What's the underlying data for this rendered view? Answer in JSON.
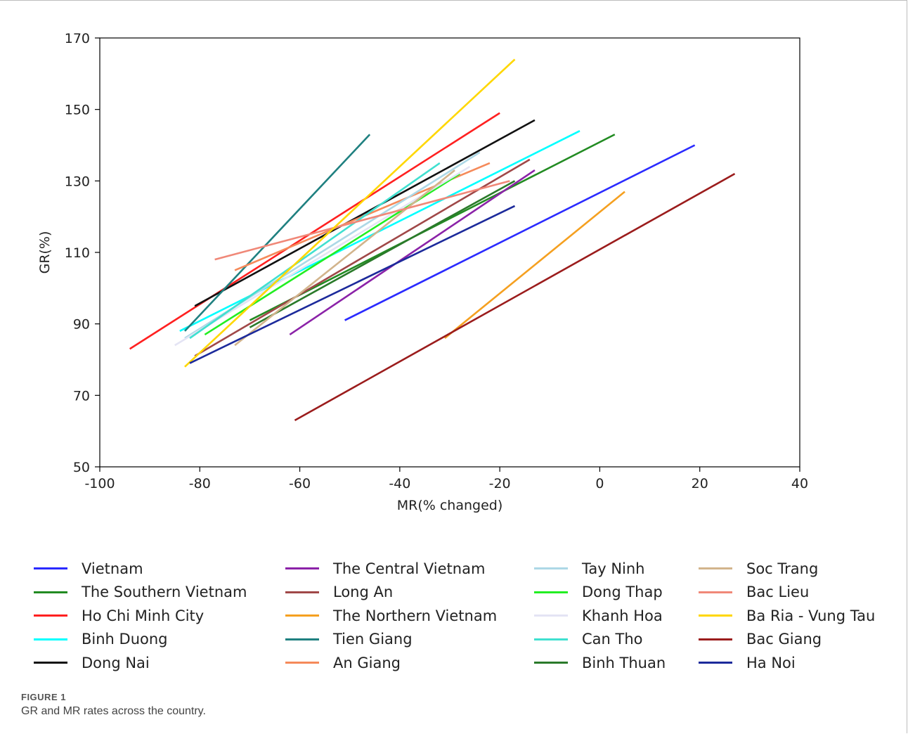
{
  "chart_data": {
    "type": "line",
    "xlabel": "MR(% changed)",
    "ylabel": "GR(%)",
    "xlim": [
      -100,
      40
    ],
    "ylim": [
      50,
      170
    ],
    "xticks": [
      -100,
      -80,
      -60,
      -40,
      -20,
      0,
      20,
      40
    ],
    "yticks": [
      50,
      70,
      90,
      110,
      130,
      150,
      170
    ],
    "grid": false,
    "legend_position": "bottom",
    "series": [
      {
        "name": "Vietnam",
        "color": "#2a2aff",
        "x": [
          -51,
          19
        ],
        "y": [
          91,
          140
        ]
      },
      {
        "name": "The Southern Vietnam",
        "color": "#228b22",
        "x": [
          -70,
          3
        ],
        "y": [
          91,
          143
        ]
      },
      {
        "name": "Ho Chi Minh City",
        "color": "#ff2020",
        "x": [
          -94,
          -20
        ],
        "y": [
          83,
          149
        ]
      },
      {
        "name": "Binh Duong",
        "color": "#00ffff",
        "x": [
          -84,
          -4
        ],
        "y": [
          88,
          144
        ]
      },
      {
        "name": "Dong Nai",
        "color": "#111111",
        "x": [
          -81,
          -13
        ],
        "y": [
          95,
          147
        ]
      },
      {
        "name": "The Central Vietnam",
        "color": "#8b22a8",
        "x": [
          -62,
          -13
        ],
        "y": [
          87,
          133
        ]
      },
      {
        "name": "Long An",
        "color": "#a04848",
        "x": [
          -81,
          -14
        ],
        "y": [
          81,
          136
        ]
      },
      {
        "name": "The Northern Vietnam",
        "color": "#f5a020",
        "x": [
          -31,
          5
        ],
        "y": [
          86,
          127
        ]
      },
      {
        "name": "Tien Giang",
        "color": "#1f8080",
        "x": [
          -83,
          -46
        ],
        "y": [
          88,
          143
        ]
      },
      {
        "name": "An Giang",
        "color": "#f58a5a",
        "x": [
          -73,
          -22
        ],
        "y": [
          105,
          135
        ]
      },
      {
        "name": "Tay Ninh",
        "color": "#add8e6",
        "x": [
          -83,
          -24
        ],
        "y": [
          86,
          138
        ]
      },
      {
        "name": "Dong Thap",
        "color": "#22ee22",
        "x": [
          -79,
          -28
        ],
        "y": [
          87,
          132
        ]
      },
      {
        "name": "Khanh Hoa",
        "color": "#e4e4f4",
        "x": [
          -85,
          -26
        ],
        "y": [
          84,
          134
        ]
      },
      {
        "name": "Can Tho",
        "color": "#40e0d0",
        "x": [
          -82,
          -32
        ],
        "y": [
          86,
          135
        ]
      },
      {
        "name": "Binh Thuan",
        "color": "#2a7a2a",
        "x": [
          -70,
          -17
        ],
        "y": [
          89,
          130
        ]
      },
      {
        "name": "Soc Trang",
        "color": "#d2b48c",
        "x": [
          -73,
          -29
        ],
        "y": [
          84,
          133
        ]
      },
      {
        "name": "Bac Lieu",
        "color": "#f08878",
        "x": [
          -77,
          -18
        ],
        "y": [
          108,
          130
        ]
      },
      {
        "name": "Ba Ria - Vung Tau",
        "color": "#ffd700",
        "x": [
          -83,
          -17
        ],
        "y": [
          78,
          164
        ]
      },
      {
        "name": "Bac Giang",
        "color": "#9b1c1c",
        "x": [
          -61,
          27
        ],
        "y": [
          63,
          132
        ]
      },
      {
        "name": "Ha Noi",
        "color": "#1c2a9b",
        "x": [
          -82,
          -17
        ],
        "y": [
          79,
          123
        ]
      }
    ]
  },
  "legend_columns": [
    [
      0,
      1,
      2,
      3,
      4
    ],
    [
      5,
      6,
      7,
      8,
      9
    ],
    [
      10,
      11,
      12,
      13,
      14
    ],
    [
      15,
      16,
      17,
      18,
      19
    ]
  ],
  "figure": {
    "label": "FIGURE 1",
    "caption": "GR and MR rates across the country."
  }
}
